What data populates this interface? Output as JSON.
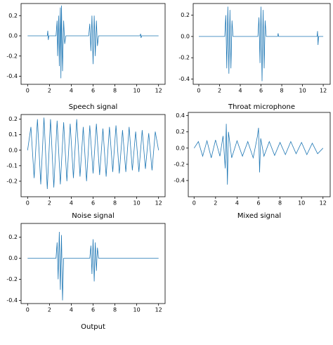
{
  "chart_data": [
    {
      "type": "line",
      "title": "Speech signal",
      "x": [
        0,
        1.8,
        1.85,
        1.9,
        1.95,
        2.6,
        2.7,
        2.75,
        2.85,
        2.9,
        3.0,
        3.05,
        3.1,
        3.2,
        3.3,
        3.4,
        3.5,
        5.6,
        5.7,
        5.8,
        5.9,
        6.0,
        6.1,
        6.2,
        6.3,
        6.4,
        6.5,
        10.3,
        10.35,
        10.4,
        10.45,
        12
      ],
      "values": [
        0,
        0,
        0.05,
        -0.04,
        0,
        0,
        0.15,
        -0.2,
        0.2,
        -0.3,
        0.28,
        -0.42,
        0.3,
        -0.35,
        0.15,
        -0.08,
        0,
        0,
        0.12,
        -0.15,
        0.2,
        -0.28,
        0.2,
        -0.2,
        0.15,
        -0.1,
        0,
        0,
        0.02,
        -0.02,
        0,
        0
      ],
      "color": "#1f77b4",
      "xlim": [
        -0.6,
        12.6
      ],
      "ylim": [
        -0.48,
        0.32
      ],
      "xticks": [
        0,
        2,
        4,
        6,
        8,
        10,
        12
      ],
      "yticks": [
        -0.4,
        -0.2,
        {
          "value": 0,
          "label": "0.0"
        },
        0.2
      ]
    },
    {
      "type": "line",
      "title": "Throat microphone",
      "x": [
        0,
        2.5,
        2.6,
        2.7,
        2.8,
        2.9,
        3.0,
        3.1,
        3.2,
        3.3,
        5.7,
        5.8,
        5.9,
        6.0,
        6.1,
        6.2,
        6.3,
        6.4,
        6.5,
        7.6,
        7.65,
        7.7,
        11.4,
        11.45,
        11.5,
        11.55,
        12
      ],
      "values": [
        0,
        0,
        0.2,
        -0.3,
        0.28,
        -0.35,
        0.25,
        -0.3,
        0.15,
        0,
        0,
        0.18,
        -0.25,
        0.28,
        -0.42,
        0.25,
        -0.3,
        0.15,
        0,
        0,
        0.03,
        0,
        0,
        0.05,
        -0.08,
        0,
        0
      ],
      "color": "#1f77b4",
      "xlim": [
        -0.54,
        12.67
      ],
      "ylim": [
        -0.45,
        0.31
      ],
      "xticks": [
        0,
        2,
        4,
        6,
        8,
        10,
        12
      ],
      "yticks": [
        -0.4,
        -0.2,
        {
          "value": 0,
          "label": "0.0"
        },
        0.2
      ]
    },
    {
      "type": "line",
      "title": "Noise signal",
      "x": [
        0,
        0.3,
        0.6,
        0.9,
        1.2,
        1.5,
        1.8,
        2.1,
        2.4,
        2.7,
        3.0,
        3.3,
        3.6,
        3.9,
        4.2,
        4.5,
        4.8,
        5.1,
        5.4,
        5.7,
        6.0,
        6.3,
        6.6,
        6.9,
        7.2,
        7.5,
        7.8,
        8.1,
        8.4,
        8.7,
        9.0,
        9.3,
        9.6,
        9.9,
        10.2,
        10.5,
        10.8,
        11.1,
        11.4,
        11.7,
        12
      ],
      "values": [
        0,
        0.15,
        -0.18,
        0.2,
        -0.22,
        0.21,
        -0.25,
        0.2,
        -0.24,
        0.19,
        -0.22,
        0.18,
        -0.2,
        0.17,
        -0.18,
        0.2,
        -0.17,
        0.15,
        -0.2,
        0.16,
        -0.15,
        0.17,
        -0.16,
        0.14,
        -0.17,
        0.15,
        -0.14,
        0.16,
        -0.15,
        0.13,
        -0.14,
        0.15,
        -0.13,
        0.12,
        -0.14,
        0.13,
        -0.12,
        0.11,
        -0.13,
        0.12,
        0
      ],
      "color": "#1f77b4",
      "xlim": [
        -0.6,
        12.6
      ],
      "ylim": [
        -0.3,
        0.23
      ],
      "xticks": [
        0,
        2,
        4,
        6,
        8,
        10,
        12
      ],
      "yticks": [
        -0.2,
        -0.1,
        {
          "value": 0,
          "label": "0.0"
        },
        0.1,
        0.2
      ]
    },
    {
      "type": "line",
      "title": "Mixed signal",
      "x": [
        0,
        0.4,
        0.8,
        1.2,
        1.6,
        2.0,
        2.4,
        2.7,
        2.9,
        3.0,
        3.1,
        3.2,
        3.5,
        4.0,
        4.5,
        5.0,
        5.5,
        5.9,
        6.0,
        6.1,
        6.2,
        6.5,
        7.0,
        7.5,
        8.0,
        8.5,
        9.0,
        9.5,
        10.0,
        10.5,
        11.0,
        11.5,
        12
      ],
      "values": [
        0,
        0.08,
        -0.1,
        0.09,
        -0.12,
        0.1,
        -0.1,
        0.15,
        -0.25,
        0.3,
        -0.45,
        0.2,
        -0.12,
        0.09,
        -0.1,
        0.08,
        -0.12,
        0.15,
        0.25,
        -0.3,
        0.12,
        -0.1,
        0.08,
        -0.09,
        0.07,
        -0.08,
        0.08,
        -0.07,
        0.07,
        -0.08,
        0.06,
        -0.07,
        0
      ],
      "color": "#1f77b4",
      "xlim": [
        -0.54,
        12.67
      ],
      "ylim": [
        -0.6,
        0.44
      ],
      "xticks": [
        0,
        2,
        4,
        6,
        8,
        10,
        12
      ],
      "yticks": [
        -0.4,
        -0.2,
        {
          "value": 0,
          "label": "0.0"
        },
        0.2,
        0.4
      ]
    },
    {
      "type": "line",
      "title": "Output",
      "x": [
        0,
        2.6,
        2.7,
        2.8,
        2.9,
        3.0,
        3.1,
        3.2,
        3.3,
        5.7,
        5.8,
        5.9,
        6.0,
        6.1,
        6.2,
        6.3,
        6.4,
        6.5,
        12
      ],
      "values": [
        0,
        0,
        0.15,
        -0.2,
        0.25,
        -0.3,
        0.22,
        -0.4,
        0,
        0,
        0.12,
        -0.15,
        0.18,
        -0.22,
        0.15,
        -0.12,
        0.1,
        0,
        0
      ],
      "color": "#1f77b4",
      "xlim": [
        -0.6,
        12.6
      ],
      "ylim": [
        -0.43,
        0.33
      ],
      "xticks": [
        0,
        2,
        4,
        6,
        8,
        10,
        12
      ],
      "yticks": [
        -0.4,
        -0.2,
        {
          "value": 0,
          "label": "0.0"
        },
        0.2
      ]
    }
  ]
}
